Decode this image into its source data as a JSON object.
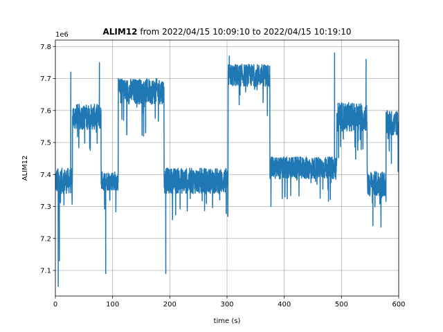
{
  "chart_data": {
    "type": "line",
    "title_bold": "ALIM12",
    "title_rest": " from 2022/04/15 10:09:10 to 2022/04/15 10:19:10",
    "xlabel": "time (s)",
    "ylabel": "ALIM12",
    "offset_text": "1e6",
    "xlim": [
      0,
      600
    ],
    "ylim": [
      7.02,
      7.82
    ],
    "xticks": [
      0,
      100,
      200,
      300,
      400,
      500,
      600
    ],
    "yticks": [
      7.1,
      7.2,
      7.3,
      7.4,
      7.5,
      7.6,
      7.7,
      7.8
    ],
    "grid": true,
    "line_color": "#1f77b4",
    "y_scale_note": "values in units of 1e6",
    "segments": [
      {
        "x_start": 0,
        "x_end": 30,
        "level": 7.38,
        "noise": 0.04
      },
      {
        "x_start": 30,
        "x_end": 80,
        "level": 7.58,
        "noise": 0.04
      },
      {
        "x_start": 80,
        "x_end": 110,
        "level": 7.38,
        "noise": 0.03
      },
      {
        "x_start": 110,
        "x_end": 190,
        "level": 7.66,
        "noise": 0.04
      },
      {
        "x_start": 190,
        "x_end": 302,
        "level": 7.38,
        "noise": 0.04
      },
      {
        "x_start": 302,
        "x_end": 375,
        "level": 7.71,
        "noise": 0.035
      },
      {
        "x_start": 375,
        "x_end": 492,
        "level": 7.42,
        "noise": 0.035
      },
      {
        "x_start": 492,
        "x_end": 545,
        "level": 7.58,
        "noise": 0.045
      },
      {
        "x_start": 545,
        "x_end": 578,
        "level": 7.37,
        "noise": 0.04
      },
      {
        "x_start": 578,
        "x_end": 600,
        "level": 7.56,
        "noise": 0.04
      }
    ],
    "spikes": [
      {
        "x": 5,
        "y": 7.05
      },
      {
        "x": 7,
        "y": 7.13
      },
      {
        "x": 27,
        "y": 7.72
      },
      {
        "x": 77,
        "y": 7.75
      },
      {
        "x": 88,
        "y": 7.09
      },
      {
        "x": 193,
        "y": 7.09
      },
      {
        "x": 304,
        "y": 7.77
      },
      {
        "x": 488,
        "y": 7.78
      },
      {
        "x": 543,
        "y": 7.76
      },
      {
        "x": 555,
        "y": 7.24
      }
    ]
  }
}
